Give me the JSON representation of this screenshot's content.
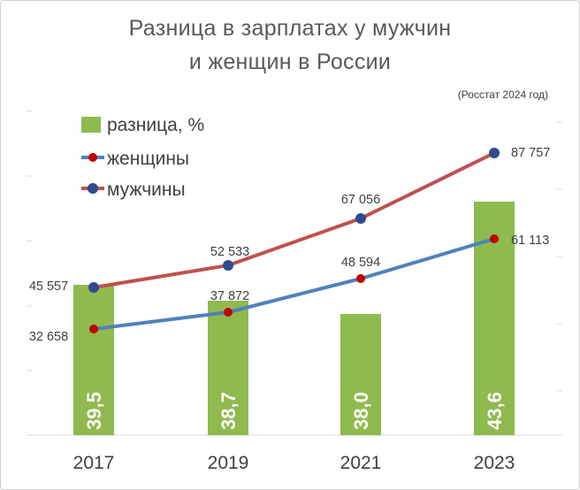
{
  "chart_data": {
    "type": "bar",
    "title_line1": "Разница в зарплатах у мужчин",
    "title_line2": "и женщин в России",
    "source": "(Росстат 2024 год)",
    "categories": [
      "2017",
      "2019",
      "2021",
      "2023"
    ],
    "bars": {
      "name": "разница, %",
      "values": [
        39.5,
        38.7,
        38.0,
        43.6
      ],
      "labels": [
        "39,5",
        "38,7",
        "38,0",
        "43,6"
      ],
      "color": "#8fba4e"
    },
    "series": [
      {
        "name": "женщины",
        "values": [
          32658,
          37872,
          48594,
          61113
        ],
        "labels": [
          "32 658",
          "37 872",
          "48 594",
          "61 113"
        ],
        "line_color": "#4f81bd",
        "marker_color": "#c00000"
      },
      {
        "name": "мужчины",
        "values": [
          45557,
          52533,
          67056,
          87757
        ],
        "labels": [
          "45 557",
          "52 533",
          "67 056",
          "87 757"
        ],
        "line_color": "#c0504d",
        "marker_color": "#2f4b8f"
      }
    ],
    "bar_ylim": [
      0,
      60
    ],
    "line_ylim": [
      0,
      100000
    ],
    "legend": "top-left",
    "grid": false
  }
}
